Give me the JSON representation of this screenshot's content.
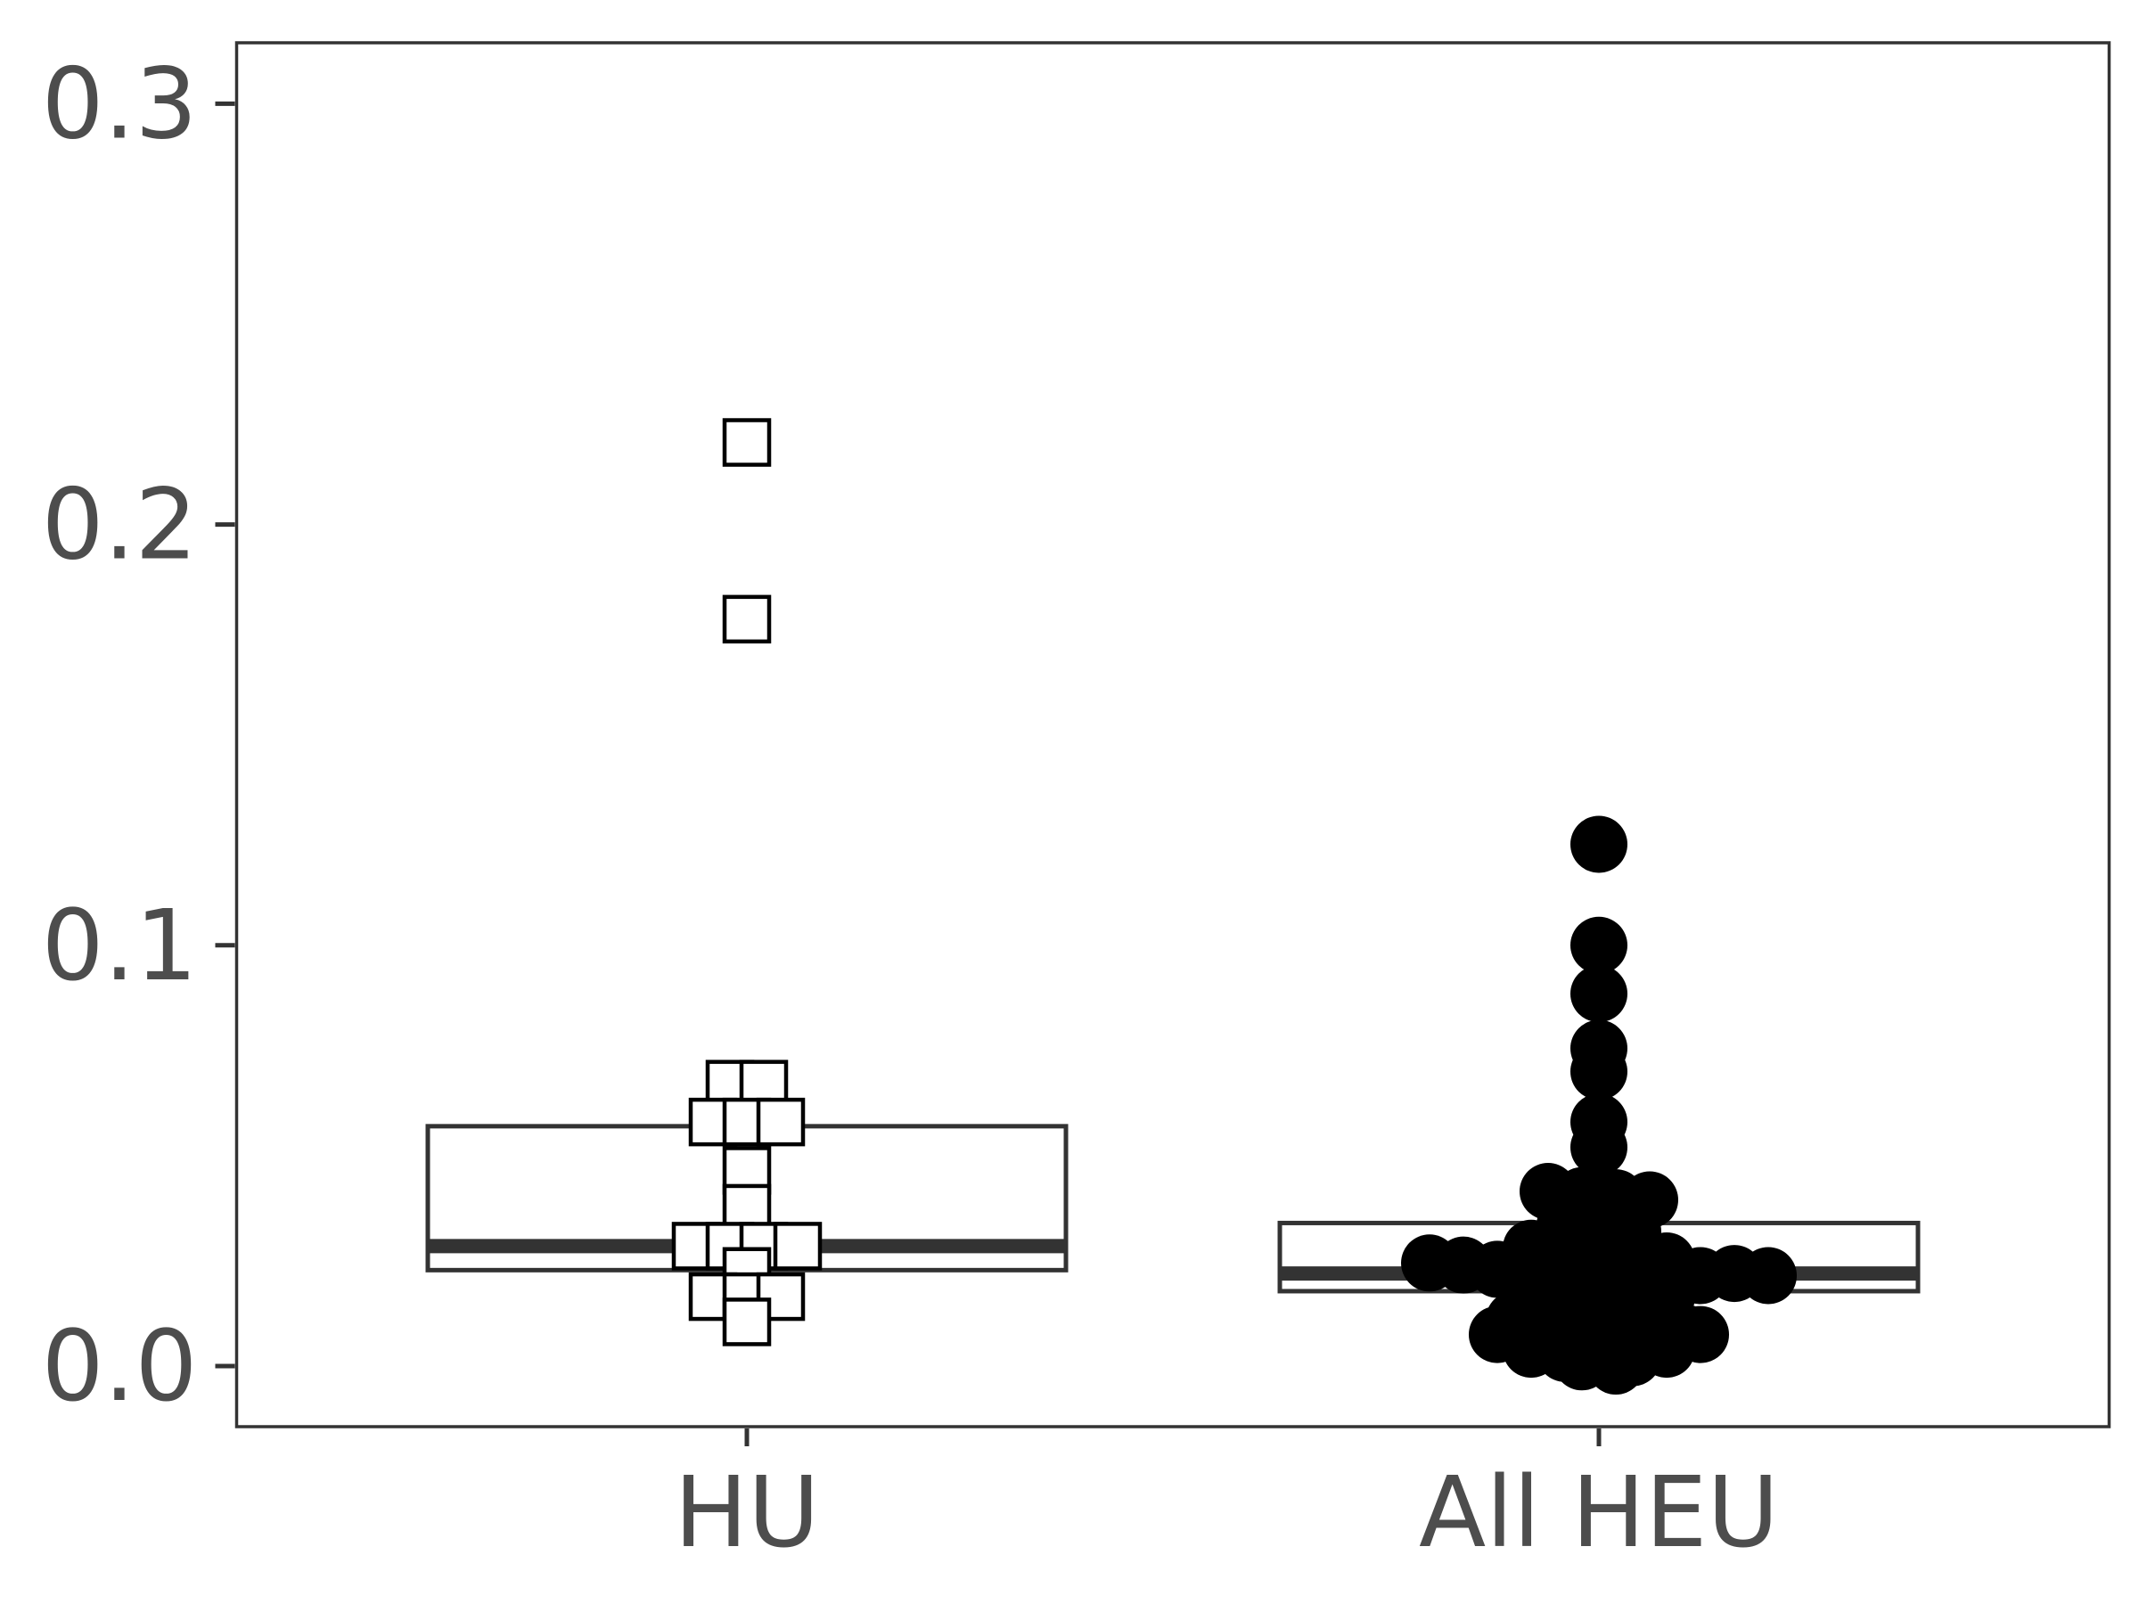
{
  "chart_data": {
    "type": "box",
    "title": "",
    "xlabel": "",
    "ylabel": "",
    "ylim": [
      -0.015,
      0.314
    ],
    "yticks": [
      0.0,
      0.1,
      0.2,
      0.3
    ],
    "ytick_labels": [
      "0.0",
      "0.1",
      "0.2",
      "0.3"
    ],
    "categories": [
      "HU",
      "All HEU"
    ],
    "grid": false,
    "legend": "none",
    "groups": [
      {
        "name": "HU",
        "marker": "open-square",
        "box": {
          "q1": 0.0228,
          "median": 0.0285,
          "q3": 0.057
        },
        "points": [
          0.2195,
          0.1775,
          0.067,
          0.067,
          0.058,
          0.058,
          0.058,
          0.0465,
          0.0375,
          0.0285,
          0.0285,
          0.0285,
          0.0285,
          0.0225,
          0.0165,
          0.0165,
          0.0165,
          0.0105
        ]
      },
      {
        "name": "All HEU",
        "marker": "filled-circle",
        "box": {
          "q1": 0.0178,
          "median": 0.022,
          "q3": 0.034
        },
        "points": [
          0.124,
          0.1,
          0.0885,
          0.0755,
          0.07,
          0.058,
          0.052,
          0.0415,
          0.0405,
          0.04,
          0.0395,
          0.0335,
          0.0335,
          0.032,
          0.031,
          0.03,
          0.029,
          0.028,
          0.0275,
          0.027,
          0.026,
          0.025,
          0.0245,
          0.024,
          0.023,
          0.022,
          0.022,
          0.022,
          0.022,
          0.022,
          0.0215,
          0.021,
          0.02,
          0.019,
          0.018,
          0.0165,
          0.016,
          0.015,
          0.014,
          0.013,
          0.012,
          0.011,
          0.01,
          0.01,
          0.0095,
          0.009,
          0.008,
          0.0075,
          0.007,
          0.0065,
          0.006,
          0.005,
          0.004,
          0.003,
          0.003,
          0.002,
          0.001,
          0.0,
          0.005,
          0.0075,
          0.004,
          0.0165,
          0.02,
          0.022,
          0.0215,
          0.021
        ]
      }
    ]
  }
}
